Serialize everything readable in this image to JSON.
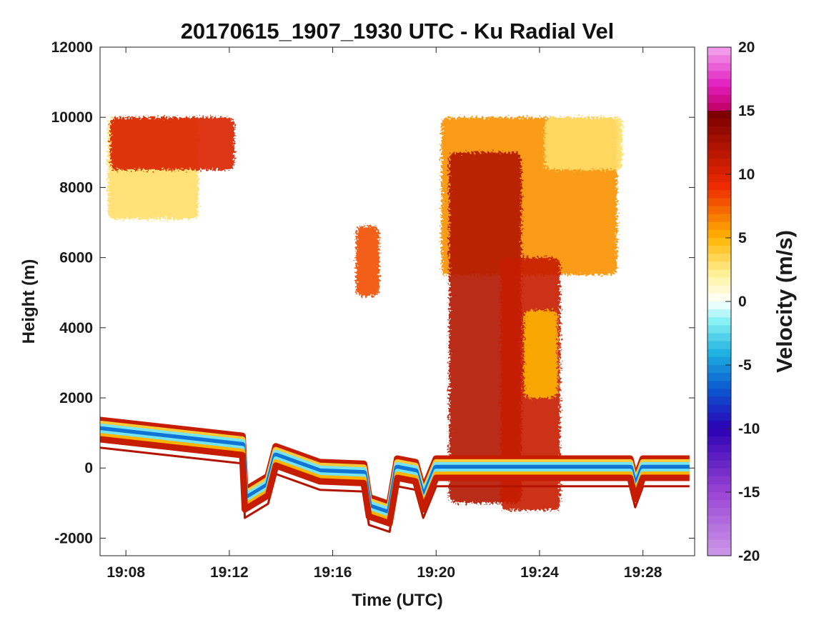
{
  "chart_data": {
    "type": "heatmap",
    "title": "20170615_1907_1930 UTC - Ku Radial Vel",
    "xlabel": "Time (UTC)",
    "ylabel": "Height (m)",
    "x_tick_labels": [
      "19:08",
      "19:12",
      "19:16",
      "19:20",
      "19:24",
      "19:28"
    ],
    "x_tick_minutes": [
      8,
      12,
      16,
      20,
      24,
      28
    ],
    "xlim_minutes": [
      7,
      30
    ],
    "y_ticks": [
      -2000,
      0,
      2000,
      4000,
      6000,
      8000,
      10000,
      12000
    ],
    "ylim": [
      -2500,
      12000
    ],
    "grid": false,
    "colorbar": {
      "label": "Velocity (m/s)",
      "ticks": [
        -20,
        -15,
        -10,
        -5,
        0,
        5,
        10,
        15,
        20
      ],
      "range": [
        -20,
        20
      ]
    },
    "features": {
      "surface_echo": [
        [
          7,
          1100
        ],
        [
          12.5,
          650
        ],
        [
          12.6,
          -900
        ],
        [
          13.5,
          -500
        ],
        [
          13.8,
          350
        ],
        [
          15.5,
          -100
        ],
        [
          17.2,
          -150
        ],
        [
          17.4,
          -1100
        ],
        [
          18.2,
          -1300
        ],
        [
          18.5,
          0
        ],
        [
          19.2,
          -100
        ],
        [
          19.5,
          -900
        ],
        [
          20,
          0
        ],
        [
          27.5,
          0
        ],
        [
          27.7,
          -600
        ],
        [
          28,
          0
        ],
        [
          29.8,
          0
        ]
      ],
      "echo_cells": [
        {
          "t": [
            7.3,
            10.8
          ],
          "h": [
            7100,
            10000
          ],
          "v": 3
        },
        {
          "t": [
            7.4,
            12.2
          ],
          "h": [
            8500,
            10000
          ],
          "v": 10
        },
        {
          "t": [
            16.9,
            17.8
          ],
          "h": [
            4900,
            6900
          ],
          "v": 8
        },
        {
          "t": [
            20.2,
            27.0
          ],
          "h": [
            5500,
            10000
          ],
          "v": 6
        },
        {
          "t": [
            20.5,
            23.3
          ],
          "h": [
            -1000,
            9000
          ],
          "v": 12
        },
        {
          "t": [
            22.5,
            24.8
          ],
          "h": [
            -1200,
            6000
          ],
          "v": 11
        },
        {
          "t": [
            23.4,
            24.7
          ],
          "h": [
            2000,
            4500
          ],
          "v": 5
        },
        {
          "t": [
            24.2,
            27.2
          ],
          "h": [
            8500,
            10000
          ],
          "v": 3
        }
      ]
    }
  }
}
